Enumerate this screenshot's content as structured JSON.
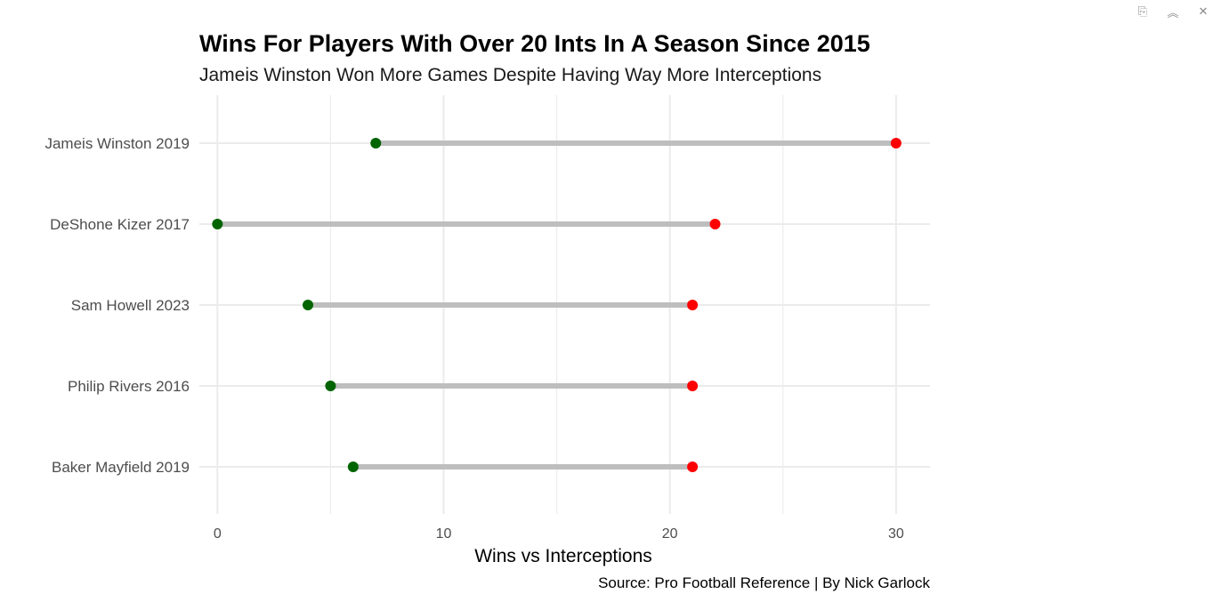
{
  "viewer": {
    "controls": [
      {
        "name": "copy-icon",
        "glyph": "⎘"
      },
      {
        "name": "collapse-icon",
        "glyph": "︽"
      },
      {
        "name": "close-icon",
        "glyph": "✕"
      }
    ]
  },
  "chart_data": {
    "type": "dumbbell",
    "title": "Wins For Players With Over 20 Ints In A Season Since 2015",
    "subtitle": "Jameis Winston Won More Games Despite Having Way More Interceptions",
    "xlabel": "Wins vs Interceptions",
    "caption": "Source: Pro Football Reference | By Nick Garlock",
    "xlim": [
      -0.8,
      31.5
    ],
    "xticks": [
      0,
      10,
      20,
      30
    ],
    "minor_gridlines": [
      5,
      15,
      25
    ],
    "grid": true,
    "colors": {
      "wins": "#006400",
      "interceptions": "#ff0000",
      "segment": "#bebebe",
      "grid": "#ebebeb"
    },
    "categories": [
      "Jameis Winston 2019",
      "DeShone Kizer 2017",
      "Sam Howell 2023",
      "Philip Rivers 2016",
      "Baker Mayfield 2019"
    ],
    "series": [
      {
        "key": "wins",
        "values": [
          7,
          0,
          4,
          5,
          6
        ]
      },
      {
        "key": "interceptions",
        "values": [
          30,
          22,
          21,
          21,
          21
        ]
      }
    ]
  }
}
